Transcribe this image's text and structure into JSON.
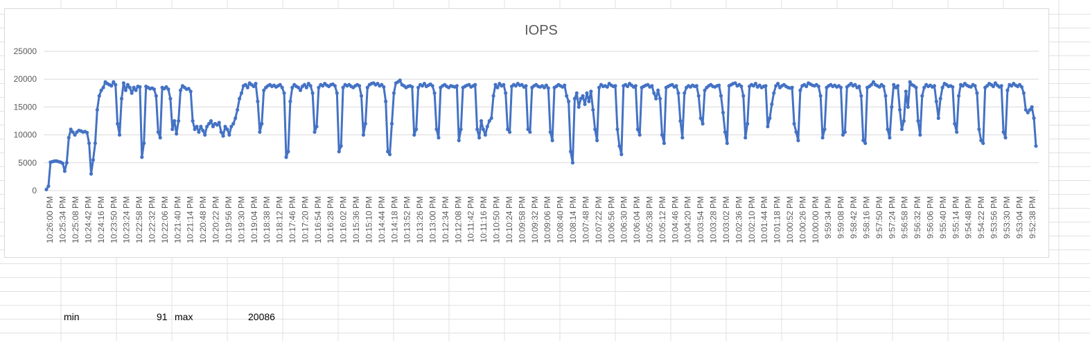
{
  "sheet": {
    "cells": {
      "min_label": "min",
      "min_value": "91",
      "max_label": "max",
      "max_value": "20086"
    },
    "gridline_color": "#e1e1e1"
  },
  "chart_data": {
    "type": "line",
    "title": "IOPS",
    "xlabel": "",
    "ylabel": "",
    "ylim": [
      0,
      25000
    ],
    "yticks": [
      0,
      5000,
      10000,
      15000,
      20000,
      25000
    ],
    "grid": true,
    "legend": "none",
    "series_color": "#4472c4",
    "x_tick_labels": [
      "10:26:00 PM",
      "10:25:34 PM",
      "10:25:08 PM",
      "10:24:42 PM",
      "10:24:16 PM",
      "10:23:50 PM",
      "10:23:24 PM",
      "10:22:58 PM",
      "10:22:32 PM",
      "10:22:06 PM",
      "10:21:40 PM",
      "10:21:14 PM",
      "10:20:48 PM",
      "10:20:22 PM",
      "10:19:56 PM",
      "10:19:30 PM",
      "10:19:04 PM",
      "10:18:38 PM",
      "10:18:12 PM",
      "10:17:46 PM",
      "10:17:20 PM",
      "10:16:54 PM",
      "10:16:28 PM",
      "10:16:02 PM",
      "10:15:36 PM",
      "10:15:10 PM",
      "10:14:44 PM",
      "10:14:18 PM",
      "10:13:52 PM",
      "10:13:26 PM",
      "10:13:00 PM",
      "10:12:34 PM",
      "10:12:08 PM",
      "10:11:42 PM",
      "10:11:16 PM",
      "10:10:50 PM",
      "10:10:24 PM",
      "10:09:58 PM",
      "10:09:32 PM",
      "10:09:06 PM",
      "10:08:40 PM",
      "10:08:14 PM",
      "10:07:48 PM",
      "10:07:22 PM",
      "10:06:56 PM",
      "10:06:30 PM",
      "10:06:04 PM",
      "10:05:38 PM",
      "10:05:12 PM",
      "10:04:46 PM",
      "10:04:20 PM",
      "10:03:54 PM",
      "10:03:28 PM",
      "10:03:02 PM",
      "10:02:36 PM",
      "10:02:10 PM",
      "10:01:44 PM",
      "10:01:18 PM",
      "10:00:52 PM",
      "10:00:26 PM",
      "10:00:00 PM",
      "9:59:34 PM",
      "9:59:08 PM",
      "9:58:42 PM",
      "9:58:16 PM",
      "9:57:50 PM",
      "9:57:24 PM",
      "9:56:58 PM",
      "9:56:32 PM",
      "9:56:06 PM",
      "9:55:40 PM",
      "9:55:14 PM",
      "9:54:48 PM",
      "9:54:22 PM",
      "9:53:56 PM",
      "9:53:30 PM",
      "9:53:04 PM",
      "9:52:38 PM"
    ],
    "series": [
      {
        "values": [
          200,
          800,
          5100,
          5200,
          5300,
          5300,
          5200,
          5100,
          4900,
          3500,
          5000,
          9500,
          11000,
          10500,
          10000,
          10500,
          10800,
          10700,
          10500,
          10600,
          10400,
          8500,
          3000,
          5500,
          8500,
          14500,
          17000,
          18000,
          18500,
          19500,
          19200,
          19000,
          18800,
          19500,
          19000,
          12000,
          10000,
          16500,
          19300,
          18000,
          19000,
          18500,
          17500,
          18500,
          18000,
          18700,
          18600,
          6000,
          8500,
          18700,
          18500,
          18300,
          18400,
          18200,
          17000,
          10500,
          9500,
          18500,
          18300,
          18600,
          18200,
          16500,
          11000,
          12500,
          10200,
          12500,
          18000,
          18800,
          18500,
          18200,
          18300,
          17800,
          12500,
          11000,
          11500,
          10500,
          11500,
          10800,
          10000,
          11500,
          12000,
          12500,
          11500,
          12000,
          11800,
          12200,
          10500,
          9800,
          11500,
          11000,
          10000,
          11500,
          12000,
          13000,
          14500,
          16500,
          17500,
          18800,
          19000,
          18500,
          19300,
          19000,
          18700,
          19200,
          16000,
          10500,
          12000,
          18000,
          18500,
          18800,
          19000,
          18700,
          18900,
          18600,
          18800,
          19000,
          18500,
          17500,
          6000,
          7000,
          16000,
          18500,
          19000,
          18700,
          18500,
          18000,
          18700,
          19000,
          18500,
          19200,
          18800,
          17500,
          10500,
          11500,
          18500,
          19000,
          18800,
          19200,
          18900,
          18700,
          19000,
          19100,
          18800,
          17500,
          7000,
          8000,
          18500,
          19000,
          18800,
          19000,
          18700,
          18500,
          18800,
          19000,
          18800,
          17000,
          10000,
          12000,
          18500,
          19000,
          19200,
          19300,
          19000,
          19200,
          18800,
          19000,
          18600,
          16000,
          7000,
          6500,
          12000,
          17500,
          19300,
          19500,
          19800,
          19000,
          18800,
          18500,
          18700,
          18800,
          18600,
          10000,
          11000,
          18500,
          19000,
          18800,
          19200,
          18700,
          18900,
          19100,
          18800,
          17500,
          11000,
          9500,
          18500,
          18800,
          19000,
          18700,
          18500,
          18800,
          18700,
          18600,
          18800,
          9000,
          11000,
          18500,
          18700,
          18900,
          19000,
          18600,
          18800,
          19000,
          11000,
          9500,
          12500,
          11000,
          10000,
          11500,
          12500,
          13000,
          17000,
          19000,
          18500,
          19200,
          18800,
          19000,
          17500,
          11000,
          10500,
          18700,
          19000,
          18800,
          19200,
          18900,
          19000,
          18600,
          18800,
          11000,
          10500,
          18500,
          18800,
          19000,
          18700,
          18600,
          18800,
          18500,
          18900,
          18400,
          10500,
          9000,
          18500,
          18700,
          19000,
          18800,
          18600,
          18900,
          17000,
          16000,
          7000,
          5000,
          16500,
          17500,
          15000,
          16500,
          17000,
          15500,
          17500,
          16000,
          17800,
          14500,
          11000,
          9000,
          18500,
          19000,
          18700,
          18800,
          18600,
          19200,
          18900,
          18700,
          18800,
          11000,
          8000,
          6500,
          18800,
          19000,
          18700,
          19200,
          18900,
          18600,
          18800,
          11000,
          10000,
          18500,
          18700,
          18900,
          19000,
          18600,
          18800,
          17500,
          16500,
          18000,
          16500,
          10000,
          8500,
          18500,
          18700,
          18900,
          19000,
          18600,
          18800,
          17500,
          12500,
          9500,
          17500,
          18500,
          18800,
          18600,
          18900,
          18700,
          18800,
          17000,
          13000,
          12000,
          18000,
          18500,
          18800,
          19000,
          18700,
          18600,
          18800,
          18900,
          17000,
          14000,
          10500,
          8500,
          18800,
          19000,
          19200,
          19300,
          18800,
          19000,
          18700,
          17000,
          9500,
          12000,
          18700,
          19000,
          18800,
          19200,
          18600,
          18900,
          18500,
          18700,
          18800,
          11500,
          13000,
          15500,
          17500,
          18800,
          19200,
          18500,
          18800,
          19000,
          18700,
          18500,
          18400,
          18500,
          12000,
          10500,
          9000,
          18000,
          18800,
          19000,
          18700,
          19300,
          19100,
          18900,
          18800,
          19000,
          18700,
          17000,
          9500,
          11000,
          18500,
          18800,
          19000,
          18700,
          18900,
          18600,
          18800,
          18500,
          10000,
          10500,
          18600,
          18900,
          19200,
          18800,
          19000,
          18500,
          18700,
          17000,
          9000,
          8500,
          18500,
          18700,
          19000,
          19500,
          19000,
          18800,
          18600,
          19000,
          18700,
          17000,
          11000,
          9500,
          15000,
          19000,
          18500,
          18800,
          14500,
          11000,
          12500,
          17800,
          15000,
          19500,
          19000,
          18800,
          18500,
          12500,
          10000,
          17000,
          18500,
          19000,
          18700,
          18900,
          18600,
          18800,
          16000,
          13000,
          16500,
          18500,
          19200,
          19000,
          18700,
          18800,
          18600,
          12000,
          10500,
          17000,
          19000,
          18800,
          19200,
          18900,
          18700,
          18600,
          19000,
          18800,
          17500,
          11000,
          9000,
          8500,
          18500,
          18800,
          19200,
          19000,
          18700,
          19300,
          18900,
          18600,
          18800,
          10500,
          9500,
          18000,
          19000,
          18800,
          19200,
          18900,
          18700,
          19000,
          18600,
          17500,
          14500,
          14000,
          14500,
          15000,
          13000,
          8000
        ]
      }
    ]
  }
}
